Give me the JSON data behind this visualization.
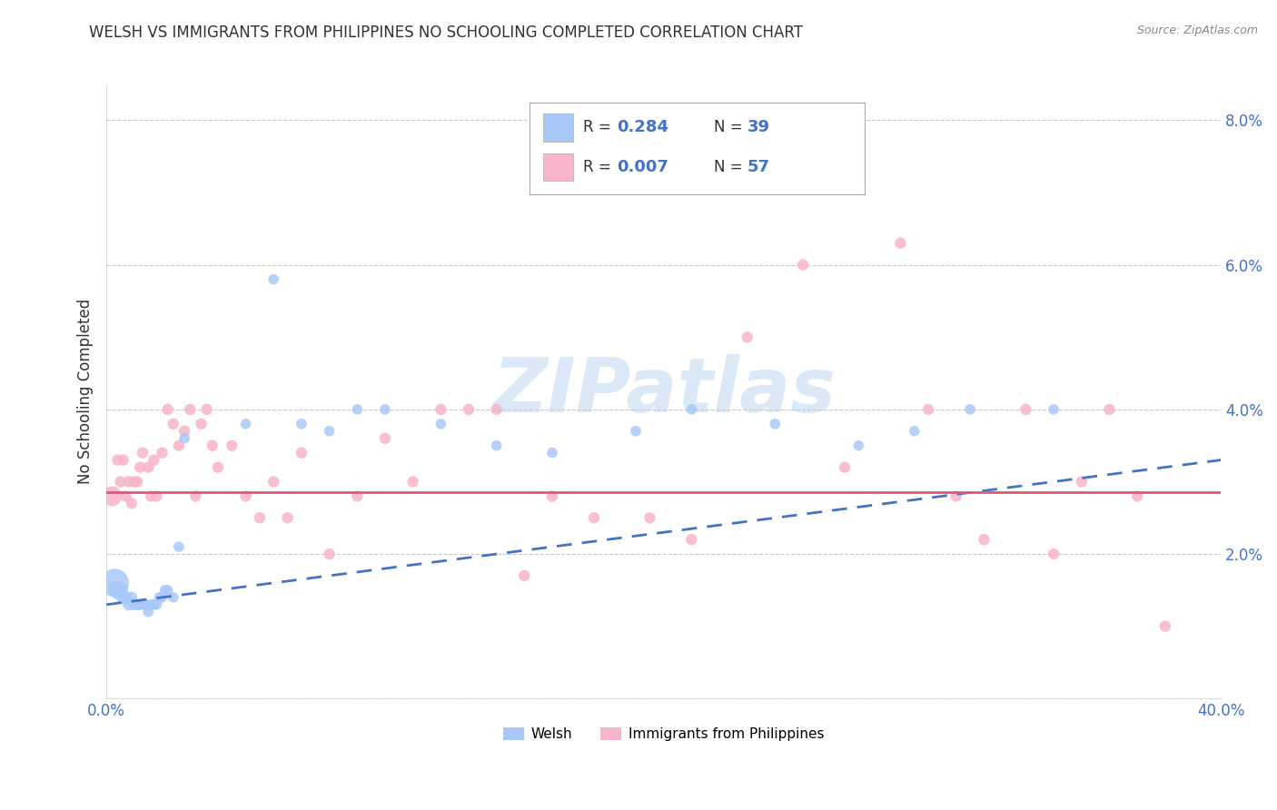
{
  "title": "WELSH VS IMMIGRANTS FROM PHILIPPINES NO SCHOOLING COMPLETED CORRELATION CHART",
  "source": "Source: ZipAtlas.com",
  "ylabel": "No Schooling Completed",
  "xlim": [
    0.0,
    0.4
  ],
  "ylim": [
    0.0,
    0.085
  ],
  "xticks": [
    0.0,
    0.1,
    0.2,
    0.3,
    0.4
  ],
  "xticklabels": [
    "0.0%",
    "",
    "",
    "",
    "40.0%"
  ],
  "yticks": [
    0.0,
    0.02,
    0.04,
    0.06,
    0.08
  ],
  "yticklabels": [
    "",
    "2.0%",
    "4.0%",
    "6.0%",
    "8.0%"
  ],
  "welsh_R": 0.284,
  "welsh_N": 39,
  "phil_R": 0.007,
  "phil_N": 57,
  "welsh_color": "#a8c8f8",
  "phil_color": "#f8b4c8",
  "welsh_line_color": "#4472c4",
  "phil_line_color": "#e05878",
  "watermark_text": "ZIPatlas",
  "background_color": "#ffffff",
  "grid_color": "#c8c8c8",
  "legend_labels": [
    "Welsh",
    "Immigrants from Philippines"
  ],
  "welsh_points_x": [
    0.003,
    0.004,
    0.005,
    0.006,
    0.007,
    0.008,
    0.009,
    0.01,
    0.011,
    0.012,
    0.013,
    0.014,
    0.015,
    0.016,
    0.017,
    0.018,
    0.019,
    0.02,
    0.021,
    0.022,
    0.024,
    0.026,
    0.028,
    0.05,
    0.06,
    0.07,
    0.08,
    0.09,
    0.1,
    0.12,
    0.14,
    0.16,
    0.19,
    0.21,
    0.24,
    0.27,
    0.29,
    0.31,
    0.34
  ],
  "welsh_points_y": [
    0.016,
    0.015,
    0.015,
    0.014,
    0.014,
    0.013,
    0.014,
    0.013,
    0.013,
    0.013,
    0.013,
    0.013,
    0.012,
    0.013,
    0.013,
    0.013,
    0.014,
    0.014,
    0.015,
    0.015,
    0.014,
    0.021,
    0.036,
    0.038,
    0.058,
    0.038,
    0.037,
    0.04,
    0.04,
    0.038,
    0.035,
    0.034,
    0.037,
    0.04,
    0.038,
    0.035,
    0.037,
    0.04,
    0.04
  ],
  "welsh_sizes": [
    500,
    200,
    150,
    120,
    100,
    90,
    80,
    80,
    80,
    70,
    70,
    70,
    70,
    70,
    70,
    70,
    70,
    70,
    70,
    70,
    70,
    70,
    70,
    70,
    70,
    70,
    70,
    70,
    70,
    70,
    70,
    70,
    70,
    70,
    70,
    70,
    70,
    70,
    70
  ],
  "phil_points_x": [
    0.002,
    0.004,
    0.005,
    0.006,
    0.007,
    0.008,
    0.009,
    0.01,
    0.011,
    0.012,
    0.013,
    0.015,
    0.016,
    0.017,
    0.018,
    0.02,
    0.022,
    0.024,
    0.026,
    0.028,
    0.03,
    0.032,
    0.034,
    0.036,
    0.038,
    0.04,
    0.045,
    0.05,
    0.055,
    0.06,
    0.065,
    0.07,
    0.08,
    0.09,
    0.1,
    0.11,
    0.12,
    0.13,
    0.14,
    0.15,
    0.16,
    0.175,
    0.195,
    0.21,
    0.23,
    0.25,
    0.265,
    0.285,
    0.295,
    0.305,
    0.315,
    0.33,
    0.34,
    0.35,
    0.36,
    0.37,
    0.38
  ],
  "phil_points_y": [
    0.028,
    0.033,
    0.03,
    0.033,
    0.028,
    0.03,
    0.027,
    0.03,
    0.03,
    0.032,
    0.034,
    0.032,
    0.028,
    0.033,
    0.028,
    0.034,
    0.04,
    0.038,
    0.035,
    0.037,
    0.04,
    0.028,
    0.038,
    0.04,
    0.035,
    0.032,
    0.035,
    0.028,
    0.025,
    0.03,
    0.025,
    0.034,
    0.02,
    0.028,
    0.036,
    0.03,
    0.04,
    0.04,
    0.04,
    0.017,
    0.028,
    0.025,
    0.025,
    0.022,
    0.05,
    0.06,
    0.032,
    0.063,
    0.04,
    0.028,
    0.022,
    0.04,
    0.02,
    0.03,
    0.04,
    0.028,
    0.01
  ],
  "phil_sizes": [
    250,
    80,
    80,
    80,
    80,
    80,
    80,
    80,
    80,
    80,
    80,
    80,
    80,
    80,
    80,
    80,
    80,
    80,
    80,
    80,
    80,
    80,
    80,
    80,
    80,
    80,
    80,
    80,
    80,
    80,
    80,
    80,
    80,
    80,
    80,
    80,
    80,
    80,
    80,
    80,
    80,
    80,
    80,
    80,
    80,
    80,
    80,
    80,
    80,
    80,
    80,
    80,
    80,
    80,
    80,
    80,
    80
  ],
  "welsh_line_x": [
    0.0,
    0.4
  ],
  "welsh_line_y_start": 0.013,
  "welsh_line_y_end": 0.033,
  "phil_line_y": 0.0285
}
